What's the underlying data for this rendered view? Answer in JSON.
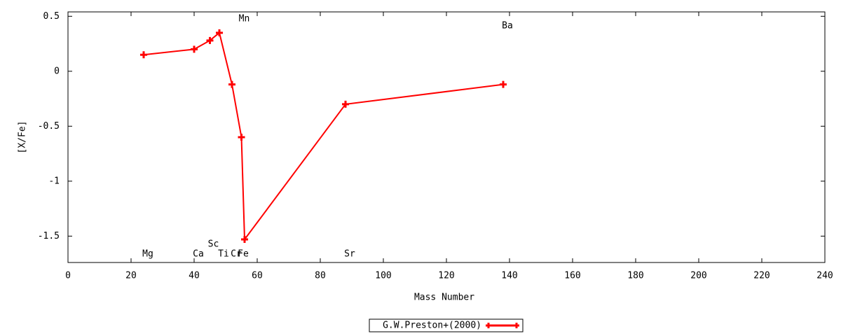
{
  "chart_data": {
    "type": "line",
    "x_label": "Mass Number",
    "y_label": "[X/Fe]",
    "x": [
      24,
      40,
      45,
      48,
      52,
      55,
      56,
      88,
      138
    ],
    "point_labels": [
      "Mg",
      "Ca",
      "Sc",
      "Ti",
      "Cr",
      "Mn",
      "Fe",
      "Sr",
      "Ba"
    ],
    "series": [
      {
        "name": "G.W.Preston+(2000)",
        "color": "#ff0000",
        "values": [
          0.15,
          0.2,
          0.28,
          0.35,
          -0.12,
          -0.6,
          -1.53,
          -0.3,
          -0.12
        ]
      }
    ],
    "xlim": [
      0,
      240
    ],
    "xticks": [
      0,
      20,
      40,
      60,
      80,
      100,
      120,
      140,
      160,
      180,
      200,
      220,
      240
    ],
    "ylim": [
      -1.74,
      0.54
    ],
    "yticks": [
      0.5,
      0,
      -0.5,
      -1,
      -1.5
    ],
    "legend": "bottom"
  }
}
